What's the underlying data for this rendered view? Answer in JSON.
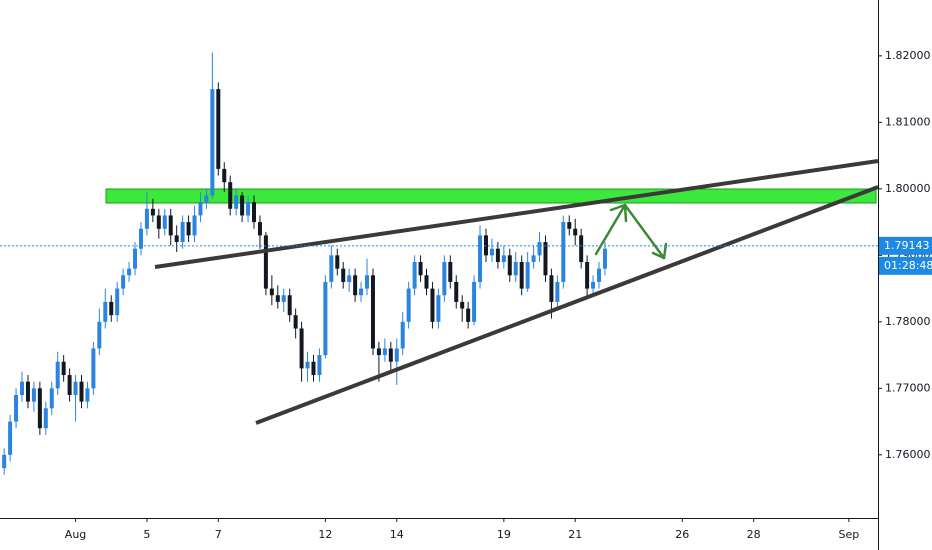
{
  "chart_data": {
    "type": "candlestick",
    "up_color": "#2a84e0",
    "down_color": "#131722",
    "xlim": [
      -0.7,
      146.9
    ],
    "ylim": [
      1.7505,
      1.8284
    ],
    "yticks": [
      {
        "value": 1.76,
        "label": "1.76000"
      },
      {
        "value": 1.77,
        "label": "1.77000"
      },
      {
        "value": 1.78,
        "label": "1.78000"
      },
      {
        "value": 1.79,
        "label": "1.79000"
      },
      {
        "value": 1.8,
        "label": "1.80000"
      },
      {
        "value": 1.81,
        "label": "1.81000"
      },
      {
        "value": 1.82,
        "label": "1.82000"
      }
    ],
    "xticks": [
      {
        "value": 12,
        "label": "Aug"
      },
      {
        "value": 24,
        "label": "5"
      },
      {
        "value": 36,
        "label": "7"
      },
      {
        "value": 54,
        "label": "12"
      },
      {
        "value": 66,
        "label": "14"
      },
      {
        "value": 84,
        "label": "19"
      },
      {
        "value": 96,
        "label": "21"
      },
      {
        "value": 114,
        "label": "26"
      },
      {
        "value": 126,
        "label": "28"
      },
      {
        "value": 142,
        "label": "Sep"
      }
    ],
    "last_price": 1.79143,
    "countdown": "01:28:48",
    "open": [
      1.758,
      1.76,
      1.765,
      1.769,
      1.771,
      1.768,
      1.77,
      1.764,
      1.767,
      1.77,
      1.774,
      1.772,
      1.769,
      1.771,
      1.768,
      1.77,
      1.776,
      1.78,
      1.783,
      1.781,
      1.785,
      1.787,
      1.788,
      1.791,
      1.794,
      1.797,
      1.796,
      1.794,
      1.796,
      1.793,
      1.792,
      1.795,
      1.793,
      1.796,
      1.798,
      1.799,
      1.815,
      1.803,
      1.801,
      1.797,
      1.799,
      1.796,
      1.798,
      1.795,
      1.793,
      1.785,
      1.784,
      1.783,
      1.784,
      1.781,
      1.779,
      1.773,
      1.774,
      1.772,
      1.775,
      1.786,
      1.79,
      1.788,
      1.786,
      1.787,
      1.784,
      1.785,
      1.787,
      1.776,
      1.775,
      1.776,
      1.774,
      1.776,
      1.78,
      1.785,
      1.789,
      1.787,
      1.785,
      1.78,
      1.784,
      1.789,
      1.786,
      1.783,
      1.782,
      1.78,
      1.786,
      1.793,
      1.79,
      1.791,
      1.789,
      1.79,
      1.787,
      1.789,
      1.785,
      1.789,
      1.79,
      1.792,
      1.787,
      1.783,
      1.786,
      1.795,
      1.794,
      1.793,
      1.789,
      1.785,
      1.786,
      1.788
    ],
    "high": [
      1.761,
      1.766,
      1.77,
      1.7725,
      1.772,
      1.771,
      1.771,
      1.768,
      1.771,
      1.7755,
      1.775,
      1.773,
      1.772,
      1.772,
      1.771,
      1.777,
      1.782,
      1.785,
      1.784,
      1.786,
      1.788,
      1.789,
      1.792,
      1.795,
      1.7995,
      1.7985,
      1.797,
      1.797,
      1.797,
      1.7945,
      1.796,
      1.796,
      1.7975,
      1.7995,
      1.8,
      1.8205,
      1.816,
      1.804,
      1.802,
      1.8,
      1.7995,
      1.799,
      1.799,
      1.796,
      1.7935,
      1.787,
      1.7855,
      1.785,
      1.785,
      1.782,
      1.78,
      1.7755,
      1.775,
      1.776,
      1.787,
      1.7915,
      1.791,
      1.789,
      1.788,
      1.788,
      1.786,
      1.7895,
      1.788,
      1.777,
      1.7775,
      1.777,
      1.7775,
      1.7815,
      1.786,
      1.79,
      1.79,
      1.788,
      1.786,
      1.785,
      1.79,
      1.79,
      1.787,
      1.784,
      1.783,
      1.787,
      1.7945,
      1.794,
      1.7925,
      1.792,
      1.7915,
      1.791,
      1.7905,
      1.79,
      1.7905,
      1.7915,
      1.7935,
      1.793,
      1.788,
      1.787,
      1.796,
      1.796,
      1.7955,
      1.794,
      1.79,
      1.787,
      1.789,
      1.792
    ],
    "low": [
      1.757,
      1.759,
      1.764,
      1.768,
      1.767,
      1.7665,
      1.763,
      1.763,
      1.766,
      1.769,
      1.771,
      1.768,
      1.765,
      1.767,
      1.767,
      1.769,
      1.775,
      1.779,
      1.78,
      1.78,
      1.784,
      1.786,
      1.787,
      1.79,
      1.793,
      1.795,
      1.7925,
      1.793,
      1.7915,
      1.7905,
      1.791,
      1.792,
      1.792,
      1.795,
      1.797,
      1.7985,
      1.802,
      1.7995,
      1.796,
      1.796,
      1.795,
      1.795,
      1.794,
      1.791,
      1.784,
      1.7825,
      1.782,
      1.7815,
      1.78,
      1.7775,
      1.771,
      1.771,
      1.771,
      1.771,
      1.7745,
      1.785,
      1.787,
      1.785,
      1.7845,
      1.783,
      1.783,
      1.784,
      1.775,
      1.771,
      1.774,
      1.7725,
      1.7705,
      1.775,
      1.779,
      1.784,
      1.786,
      1.784,
      1.779,
      1.779,
      1.783,
      1.785,
      1.782,
      1.78,
      1.779,
      1.7795,
      1.785,
      1.789,
      1.789,
      1.788,
      1.788,
      1.786,
      1.786,
      1.784,
      1.7845,
      1.788,
      1.789,
      1.786,
      1.7805,
      1.782,
      1.785,
      1.793,
      1.7915,
      1.788,
      1.7835,
      1.784,
      1.785,
      1.787
    ],
    "close": [
      1.76,
      1.765,
      1.769,
      1.771,
      1.768,
      1.77,
      1.764,
      1.767,
      1.77,
      1.774,
      1.772,
      1.769,
      1.771,
      1.768,
      1.77,
      1.776,
      1.78,
      1.783,
      1.781,
      1.785,
      1.787,
      1.788,
      1.791,
      1.794,
      1.797,
      1.796,
      1.794,
      1.796,
      1.793,
      1.792,
      1.795,
      1.793,
      1.796,
      1.798,
      1.799,
      1.815,
      1.803,
      1.801,
      1.797,
      1.799,
      1.796,
      1.798,
      1.795,
      1.793,
      1.785,
      1.784,
      1.783,
      1.784,
      1.781,
      1.779,
      1.773,
      1.774,
      1.772,
      1.775,
      1.786,
      1.79,
      1.788,
      1.786,
      1.787,
      1.784,
      1.785,
      1.787,
      1.776,
      1.775,
      1.776,
      1.774,
      1.776,
      1.78,
      1.785,
      1.789,
      1.787,
      1.785,
      1.78,
      1.784,
      1.789,
      1.786,
      1.783,
      1.782,
      1.78,
      1.786,
      1.793,
      1.79,
      1.791,
      1.789,
      1.79,
      1.787,
      1.789,
      1.785,
      1.789,
      1.79,
      1.792,
      1.787,
      1.783,
      1.786,
      1.795,
      1.794,
      1.793,
      1.789,
      1.785,
      1.786,
      1.788,
      1.791
    ]
  }
}
